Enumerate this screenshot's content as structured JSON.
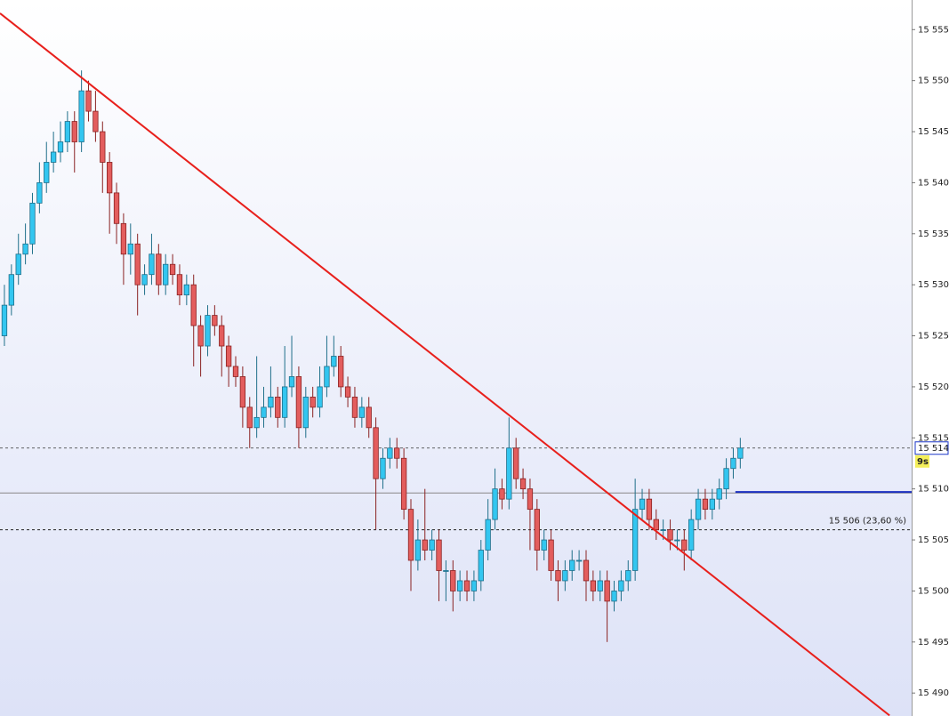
{
  "chart_data": {
    "type": "candlestick",
    "ylim": [
      15487.75,
      15557.9
    ],
    "xlim": [
      -0.63,
      129.45
    ],
    "yticks": [
      {
        "value": 15490,
        "label": "15 490"
      },
      {
        "value": 15495,
        "label": "15 495"
      },
      {
        "value": 15500,
        "label": "15 500"
      },
      {
        "value": 15505,
        "label": "15 505"
      },
      {
        "value": 15510,
        "label": "15 510"
      },
      {
        "value": 15515,
        "label": "15 515"
      },
      {
        "value": 15520,
        "label": "15 520"
      },
      {
        "value": 15525,
        "label": "15 525"
      },
      {
        "value": 15530,
        "label": "15 530"
      },
      {
        "value": 15535,
        "label": "15 535"
      },
      {
        "value": 15540,
        "label": "15 540"
      },
      {
        "value": 15545,
        "label": "15 545"
      },
      {
        "value": 15550,
        "label": "15 550"
      },
      {
        "value": 15555,
        "label": "15 555"
      }
    ],
    "up_color": "#33c6f0",
    "down_color": "#e35d5d",
    "open": [
      15525,
      15528,
      15531,
      15533,
      15534,
      15538,
      15540,
      15542,
      15543,
      15544,
      15546,
      15544,
      15549,
      15547,
      15545,
      15542,
      15539,
      15536,
      15533,
      15534,
      15530,
      15531,
      15533,
      15530,
      15532,
      15531,
      15529,
      15530,
      15526,
      15524,
      15527,
      15526,
      15524,
      15522,
      15521,
      15518,
      15516,
      15517,
      15518,
      15519,
      15517,
      15520,
      15521,
      15516,
      15519,
      15518,
      15520,
      15522,
      15523,
      15520,
      15519,
      15517,
      15518,
      15516,
      15511,
      15513,
      15514,
      15513,
      15508,
      15503,
      15505,
      15504,
      15505,
      15502,
      15502,
      15500,
      15501,
      15500,
      15501,
      15504,
      15507,
      15510,
      15509,
      15514,
      15511,
      15510,
      15508,
      15504,
      15505,
      15502,
      15501,
      15502,
      15503,
      15503,
      15501,
      15500,
      15501,
      15499,
      15500,
      15501,
      15502,
      15508,
      15509,
      15507,
      15506,
      15506,
      15505,
      15505,
      15504,
      15507,
      15509,
      15508,
      15509,
      15510,
      15512,
      15513
    ],
    "high": [
      15530,
      15532,
      15535,
      15536,
      15539,
      15542,
      15544,
      15545,
      15546,
      15547,
      15547,
      15551,
      15550,
      15549,
      15546,
      15543,
      15540,
      15537,
      15536,
      15535,
      15532,
      15535,
      15534,
      15533,
      15533,
      15532,
      15531,
      15531,
      15527,
      15528,
      15528,
      15527,
      15525,
      15523,
      15522,
      15519,
      15523,
      15520,
      15522,
      15520,
      15524,
      15525,
      15522,
      15520,
      15520,
      15522,
      15525,
      15525,
      15524,
      15521,
      15520,
      15519,
      15519,
      15517,
      15514,
      15515,
      15515,
      15514,
      15509,
      15507,
      15510,
      15506,
      15506,
      15503,
      15503,
      15502,
      15502,
      15502,
      15505,
      15509,
      15512,
      15511,
      15517,
      15515,
      15512,
      15511,
      15509,
      15506,
      15506,
      15503,
      15503,
      15504,
      15504,
      15504,
      15502,
      15502,
      15502,
      15501,
      15502,
      15503,
      15511,
      15510,
      15510,
      15508,
      15507,
      15507,
      15506,
      15506,
      15508,
      15510,
      15510,
      15510,
      15511,
      15513,
      15514,
      15515
    ],
    "low": [
      15524,
      15527,
      15530,
      15532,
      15533,
      15537,
      15539,
      15541,
      15542,
      15543,
      15541,
      15543,
      15546,
      15544,
      15539,
      15535,
      15534,
      15530,
      15531,
      15527,
      15529,
      15530,
      15529,
      15529,
      15530,
      15528,
      15528,
      15522,
      15521,
      15523,
      15525,
      15521,
      15520,
      15520,
      15516,
      15514,
      15515,
      15516,
      15517,
      15516,
      15516,
      15519,
      15514,
      15515,
      15517,
      15517,
      15519,
      15521,
      15519,
      15518,
      15516,
      15516,
      15515,
      15506,
      15510,
      15512,
      15512,
      15507,
      15500,
      15502,
      15503,
      15503,
      15499,
      15499,
      15498,
      15499,
      15499,
      15499,
      15500,
      15503,
      15506,
      15508,
      15508,
      15510,
      15509,
      15504,
      15502,
      15503,
      15501,
      15499,
      15500,
      15501,
      15502,
      15499,
      15499,
      15499,
      15495,
      15498,
      15499,
      15500,
      15501,
      15507,
      15506,
      15505,
      15505,
      15504,
      15504,
      15502,
      15503,
      15506,
      15507,
      15507,
      15508,
      15509,
      15511,
      15512
    ],
    "close": [
      15528,
      15531,
      15533,
      15534,
      15538,
      15540,
      15542,
      15543,
      15544,
      15546,
      15544,
      15549,
      15547,
      15545,
      15542,
      15539,
      15536,
      15533,
      15534,
      15530,
      15531,
      15533,
      15530,
      15532,
      15531,
      15529,
      15530,
      15526,
      15524,
      15527,
      15526,
      15524,
      15522,
      15521,
      15518,
      15516,
      15517,
      15518,
      15519,
      15517,
      15520,
      15521,
      15516,
      15519,
      15518,
      15520,
      15522,
      15523,
      15520,
      15519,
      15517,
      15518,
      15516,
      15511,
      15513,
      15514,
      15513,
      15508,
      15503,
      15505,
      15504,
      15505,
      15502,
      15502,
      15500,
      15501,
      15500,
      15501,
      15504,
      15507,
      15510,
      15509,
      15514,
      15511,
      15510,
      15508,
      15504,
      15505,
      15502,
      15501,
      15502,
      15503,
      15503,
      15501,
      15500,
      15501,
      15499,
      15500,
      15501,
      15502,
      15508,
      15509,
      15507,
      15506,
      15506,
      15505,
      15505,
      15504,
      15507,
      15509,
      15508,
      15509,
      15510,
      15512,
      15513,
      15514
    ],
    "trendline": {
      "x": [
        -0.63,
        126.3
      ],
      "y": [
        15556.6,
        15487.8
      ],
      "color": "#e8201c"
    },
    "last_price": {
      "value": 15514,
      "label": "15 514",
      "color": "#1a35c8"
    },
    "countdown": "9s",
    "reference_line": {
      "value": 15509.6,
      "color": "#888888"
    },
    "blue_level": {
      "value": 15509.7,
      "x_start": 104.3,
      "color": "#1a2fc0"
    },
    "fib_level": {
      "value": 15506,
      "label": "15 506 (23,60 %)"
    }
  }
}
